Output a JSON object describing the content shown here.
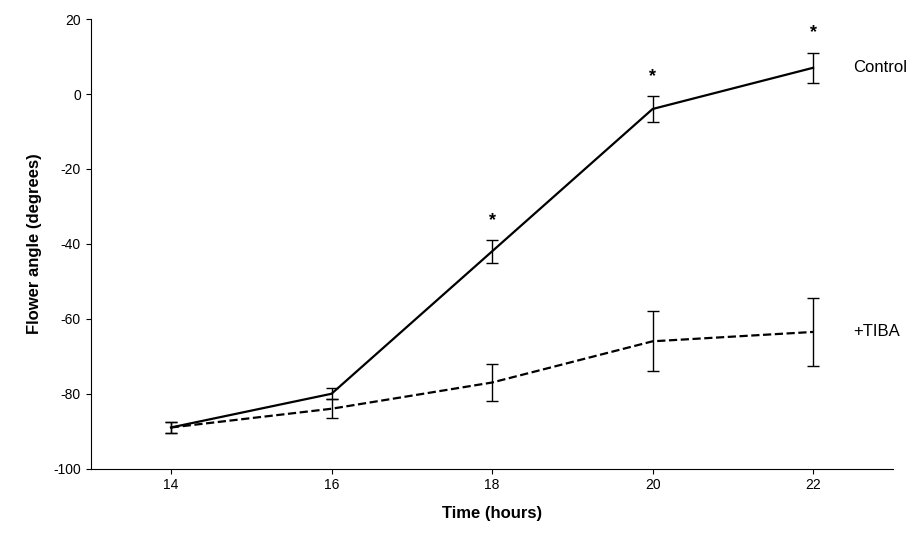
{
  "chart_data": {
    "type": "line",
    "x_label": "Time (hours)",
    "y_label": "Flower angle (degrees)",
    "x": [
      14,
      16,
      18,
      20,
      22
    ],
    "series": [
      {
        "name": "Control",
        "color": "#000000",
        "line_style": "solid",
        "values": [
          -89,
          -80,
          -42,
          -4,
          7
        ],
        "errors": [
          1.5,
          1.5,
          3,
          3.5,
          4
        ]
      },
      {
        "name": "+TIBA",
        "color": "#000000",
        "line_style": "dashed",
        "values": [
          -89,
          -84,
          -77,
          -66,
          -63.5
        ],
        "errors": [
          1.5,
          2.5,
          5,
          8,
          9
        ]
      }
    ],
    "annotations": [
      {
        "text": "*",
        "x": 18
      },
      {
        "text": "*",
        "x": 20
      },
      {
        "text": "*",
        "x": 22
      }
    ],
    "xlim": [
      13,
      23
    ],
    "xticks": [
      14,
      16,
      18,
      20,
      22
    ],
    "ylim": [
      -100,
      20
    ],
    "yticks": [
      -100,
      -80,
      -60,
      -40,
      -20,
      0,
      20
    ],
    "grid": false
  }
}
